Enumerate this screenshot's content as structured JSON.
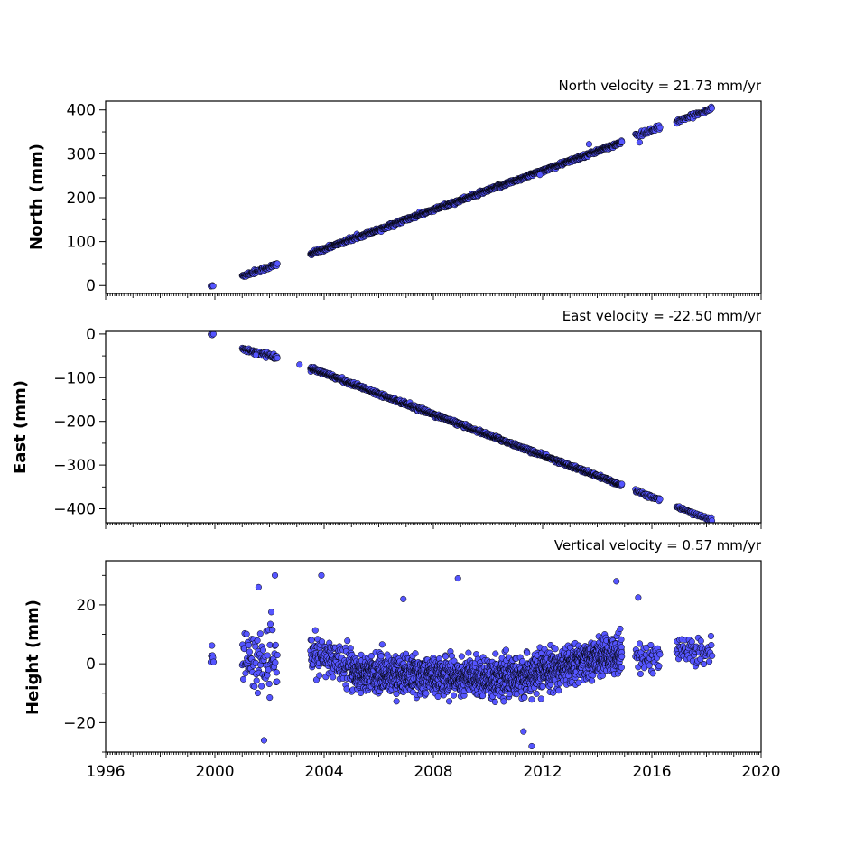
{
  "chart_data": [
    {
      "type": "scatter",
      "title": "North velocity = 21.73 mm/yr",
      "xlabel": "",
      "ylabel": "North (mm)",
      "xlim": [
        1996,
        2020
      ],
      "ylim": [
        -18,
        420
      ],
      "yticks": [
        0,
        100,
        200,
        300,
        400
      ],
      "xticks": [
        1996,
        2000,
        2004,
        2008,
        2012,
        2016,
        2020
      ],
      "xtick_labels_shown": false,
      "marker_color": "#5555ff",
      "marker_edge": "#000000",
      "segments": [
        {
          "x0": 1999.85,
          "x1": 1999.95,
          "step": 0.03,
          "y0": -1,
          "y1": -1,
          "noise": 2
        },
        {
          "x0": 2001.0,
          "x1": 2002.3,
          "step": 0.015,
          "y0": 22,
          "y1": 48,
          "noise": 5
        },
        {
          "x0": 2003.5,
          "x1": 2014.9,
          "step": 0.01,
          "y0": 72,
          "y1": 326,
          "noise": 4
        },
        {
          "x0": 2015.4,
          "x1": 2016.3,
          "step": 0.02,
          "y0": 340,
          "y1": 362,
          "noise": 6
        },
        {
          "x0": 2016.9,
          "x1": 2018.2,
          "step": 0.02,
          "y0": 372,
          "y1": 404,
          "noise": 4
        }
      ],
      "extra_points": [
        [
          2015.55,
          326
        ],
        [
          2011.9,
          252
        ],
        [
          2013.7,
          322
        ]
      ]
    },
    {
      "type": "scatter",
      "title": "East velocity = -22.50 mm/yr",
      "xlabel": "",
      "ylabel": "East (mm)",
      "xlim": [
        1996,
        2020
      ],
      "ylim": [
        -432,
        6
      ],
      "yticks": [
        0,
        -100,
        -200,
        -300,
        -400
      ],
      "xticks": [
        1996,
        2000,
        2004,
        2008,
        2012,
        2016,
        2020
      ],
      "xtick_labels_shown": false,
      "marker_color": "#5555ff",
      "marker_edge": "#000000",
      "segments": [
        {
          "x0": 1999.85,
          "x1": 1999.95,
          "step": 0.03,
          "y0": -1,
          "y1": -1,
          "noise": 2
        },
        {
          "x0": 2001.0,
          "x1": 2002.3,
          "step": 0.015,
          "y0": -34,
          "y1": -54,
          "noise": 5
        },
        {
          "x0": 2003.5,
          "x1": 2014.9,
          "step": 0.01,
          "y0": -78,
          "y1": -346,
          "noise": 4
        },
        {
          "x0": 2015.4,
          "x1": 2016.3,
          "step": 0.02,
          "y0": -358,
          "y1": -380,
          "noise": 4
        },
        {
          "x0": 2016.9,
          "x1": 2018.2,
          "step": 0.02,
          "y0": -396,
          "y1": -426,
          "noise": 4
        }
      ],
      "extra_points": [
        [
          2001.5,
          -48
        ],
        [
          2003.1,
          -70
        ]
      ]
    },
    {
      "type": "scatter",
      "title": "Vertical velocity = 0.57 mm/yr",
      "xlabel": "",
      "ylabel": "Height (mm)",
      "xlim": [
        1996,
        2020
      ],
      "ylim": [
        -30,
        35
      ],
      "yticks": [
        20,
        0,
        -20
      ],
      "xticks": [
        1996,
        2000,
        2004,
        2008,
        2012,
        2016,
        2020
      ],
      "xtick_labels": [
        "1996",
        "2000",
        "2004",
        "2008",
        "2012",
        "2016",
        "2020"
      ],
      "xtick_labels_shown": true,
      "marker_color": "#5555ff",
      "marker_edge": "#000000",
      "segments": [
        {
          "x0": 1999.85,
          "x1": 1999.95,
          "step": 0.02,
          "y0": 3,
          "y1": 3,
          "noise": 5
        },
        {
          "x0": 2001.0,
          "x1": 2002.3,
          "step": 0.015,
          "y0": 2,
          "y1": 0,
          "noise": 9
        },
        {
          "x0": 2003.5,
          "x1": 2005.0,
          "step": 0.01,
          "y0": 3,
          "y1": 0,
          "noise": 6
        },
        {
          "x0": 2005.0,
          "x1": 2011.0,
          "step": 0.005,
          "y0": -3,
          "y1": -5,
          "noise": 6
        },
        {
          "x0": 2011.0,
          "x1": 2014.9,
          "step": 0.005,
          "y0": -5,
          "y1": 4,
          "noise": 6
        },
        {
          "x0": 2015.4,
          "x1": 2016.3,
          "step": 0.02,
          "y0": 2,
          "y1": 2,
          "noise": 5
        },
        {
          "x0": 2016.9,
          "x1": 2018.2,
          "step": 0.02,
          "y0": 5,
          "y1": 4,
          "noise": 5
        }
      ],
      "extra_points": [
        [
          2003.9,
          30
        ],
        [
          2008.9,
          29
        ],
        [
          2014.7,
          28
        ],
        [
          2002.2,
          30
        ],
        [
          2001.6,
          26
        ],
        [
          2015.5,
          22.5
        ],
        [
          2011.6,
          -28
        ],
        [
          2001.8,
          -26
        ],
        [
          2006.9,
          22
        ],
        [
          2011.3,
          -23
        ]
      ]
    }
  ]
}
